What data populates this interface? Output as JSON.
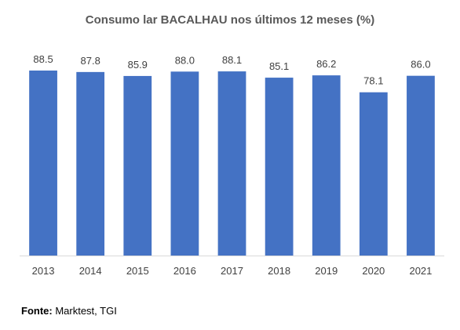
{
  "chart_data": {
    "type": "bar",
    "title": "Consumo lar BACALHAU nos últimos 12 meses (%)",
    "xlabel": "",
    "ylabel": "",
    "categories": [
      "2013",
      "2014",
      "2015",
      "2016",
      "2017",
      "2018",
      "2019",
      "2020",
      "2021"
    ],
    "series": [
      {
        "values": [
          88.5,
          87.8,
          85.9,
          88.0,
          88.1,
          85.1,
          86.2,
          78.1,
          86.0
        ],
        "labels": [
          "88.5",
          "87.8",
          "85.9",
          "88.0",
          "88.1",
          "85.1",
          "86.2",
          "78.1",
          "86.0"
        ]
      }
    ],
    "ylim": [
      0,
      88.5
    ],
    "grid": false,
    "legend": "none",
    "colors": {
      "bar": "#4472C4",
      "axis": "#D9D9D9",
      "text": "#404040"
    }
  },
  "source": {
    "label": "Fonte:",
    "text": " Marktest, TGI"
  }
}
